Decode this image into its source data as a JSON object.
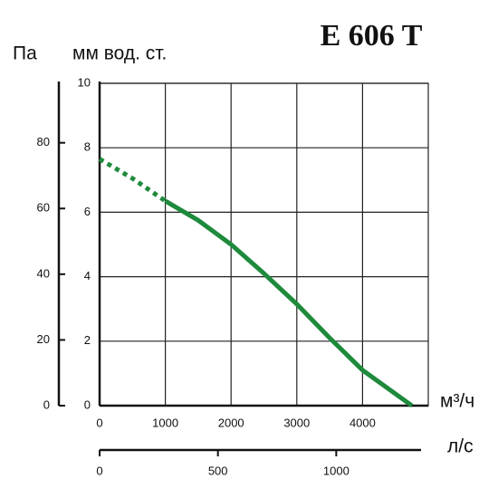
{
  "chart_data": {
    "type": "line",
    "title": "E 606 T",
    "y_label": "мм вод. ст.",
    "y2_label": "Па",
    "x_label": "м³/ч",
    "x2_label": "л/с",
    "xlim": [
      0,
      5000
    ],
    "xticks": [
      0,
      1000,
      2000,
      3000,
      4000
    ],
    "ylim": [
      0,
      10
    ],
    "yticks": [
      0,
      2,
      4,
      6,
      8,
      10
    ],
    "y2lim": [
      0,
      98.1
    ],
    "y2ticks": [
      0,
      20,
      40,
      60,
      80
    ],
    "x2lim": [
      0,
      1388.9
    ],
    "x2ticks": [
      0,
      500,
      1000
    ],
    "grid": true,
    "series": [
      {
        "color": "#1e8a3c",
        "dashed": true,
        "x": [
          0,
          500,
          1000
        ],
        "values": [
          7.65,
          7.05,
          6.35
        ]
      },
      {
        "color": "#1e8a3c",
        "dashed": false,
        "x": [
          1000,
          1500,
          2000,
          2500,
          3000,
          3500,
          4000,
          4750
        ],
        "values": [
          6.35,
          5.75,
          5.0,
          4.1,
          3.15,
          2.1,
          1.1,
          0
        ]
      }
    ]
  }
}
